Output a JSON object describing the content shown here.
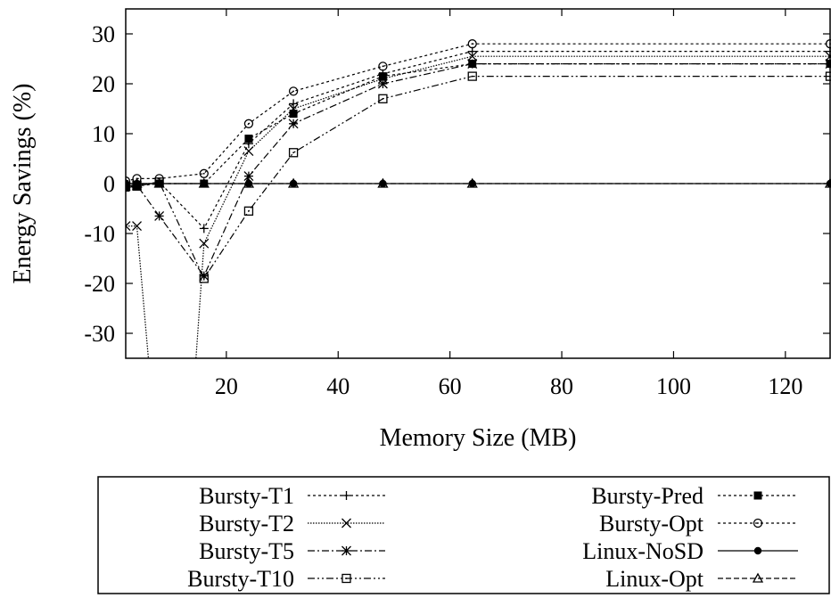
{
  "chart_data": {
    "type": "line",
    "xlabel": "Memory Size (MB)",
    "ylabel": "Energy Savings (%)",
    "xlim": [
      2,
      128
    ],
    "ylim": [
      -35,
      35
    ],
    "xticks": [
      20,
      40,
      60,
      80,
      100,
      120
    ],
    "yticks": [
      -30,
      -20,
      -10,
      0,
      10,
      20,
      30
    ],
    "grid": false,
    "legend_position": "below",
    "series": [
      {
        "name": "Bursty-T1",
        "marker": "plus",
        "dash": "dotted",
        "x": [
          2,
          4,
          8,
          16,
          24,
          32,
          48,
          64,
          128
        ],
        "y": [
          -0.5,
          -0.3,
          0.3,
          -9,
          8,
          16,
          22,
          26.5,
          26.5
        ]
      },
      {
        "name": "Bursty-T2",
        "marker": "x",
        "dash": "dotted-fine",
        "x": [
          2,
          4,
          8,
          13,
          16,
          24,
          32,
          48,
          64,
          128
        ],
        "y": [
          -8.5,
          -8.5,
          -60,
          -60,
          -12,
          6.5,
          15,
          21,
          25.5,
          25.5
        ]
      },
      {
        "name": "Bursty-T5",
        "marker": "asterisk",
        "dash": "dashdot",
        "x": [
          2,
          4,
          8,
          16,
          24,
          32,
          48,
          64,
          128
        ],
        "y": [
          -0.5,
          -0.3,
          -6.5,
          -18.5,
          1.5,
          12,
          20,
          24,
          24
        ]
      },
      {
        "name": "Bursty-T10",
        "marker": "square-open",
        "dash": "dashdotdot",
        "x": [
          2,
          4,
          8,
          16,
          24,
          32,
          48,
          64,
          128
        ],
        "y": [
          -0.5,
          -0.5,
          0.3,
          -19,
          -5.5,
          6.2,
          17,
          21.5,
          21.5
        ]
      },
      {
        "name": "Bursty-Pred",
        "marker": "square-filled",
        "dash": "dotted",
        "x": [
          2,
          4,
          8,
          16,
          24,
          32,
          48,
          64,
          128
        ],
        "y": [
          -0.8,
          -0.5,
          0,
          0,
          9,
          14,
          21.5,
          24,
          24
        ]
      },
      {
        "name": "Bursty-Opt",
        "marker": "circle-open",
        "dash": "dotted",
        "x": [
          2,
          4,
          8,
          16,
          24,
          32,
          48,
          64,
          128
        ],
        "y": [
          0.5,
          1,
          1,
          2,
          12,
          18.5,
          23.5,
          28,
          28
        ]
      },
      {
        "name": "Linux-NoSD",
        "marker": "circle-filled",
        "dash": "solid",
        "x": [
          2,
          4,
          8,
          16,
          24,
          32,
          48,
          64,
          128
        ],
        "y": [
          0,
          0,
          0,
          0,
          0,
          0,
          0,
          0,
          0
        ]
      },
      {
        "name": "Linux-Opt",
        "marker": "triangle-open",
        "dash": "dashed",
        "x": [
          2,
          4,
          8,
          16,
          24,
          32,
          48,
          64,
          128
        ],
        "y": [
          0,
          0,
          0,
          0,
          0,
          0,
          0,
          0,
          0
        ]
      }
    ]
  }
}
